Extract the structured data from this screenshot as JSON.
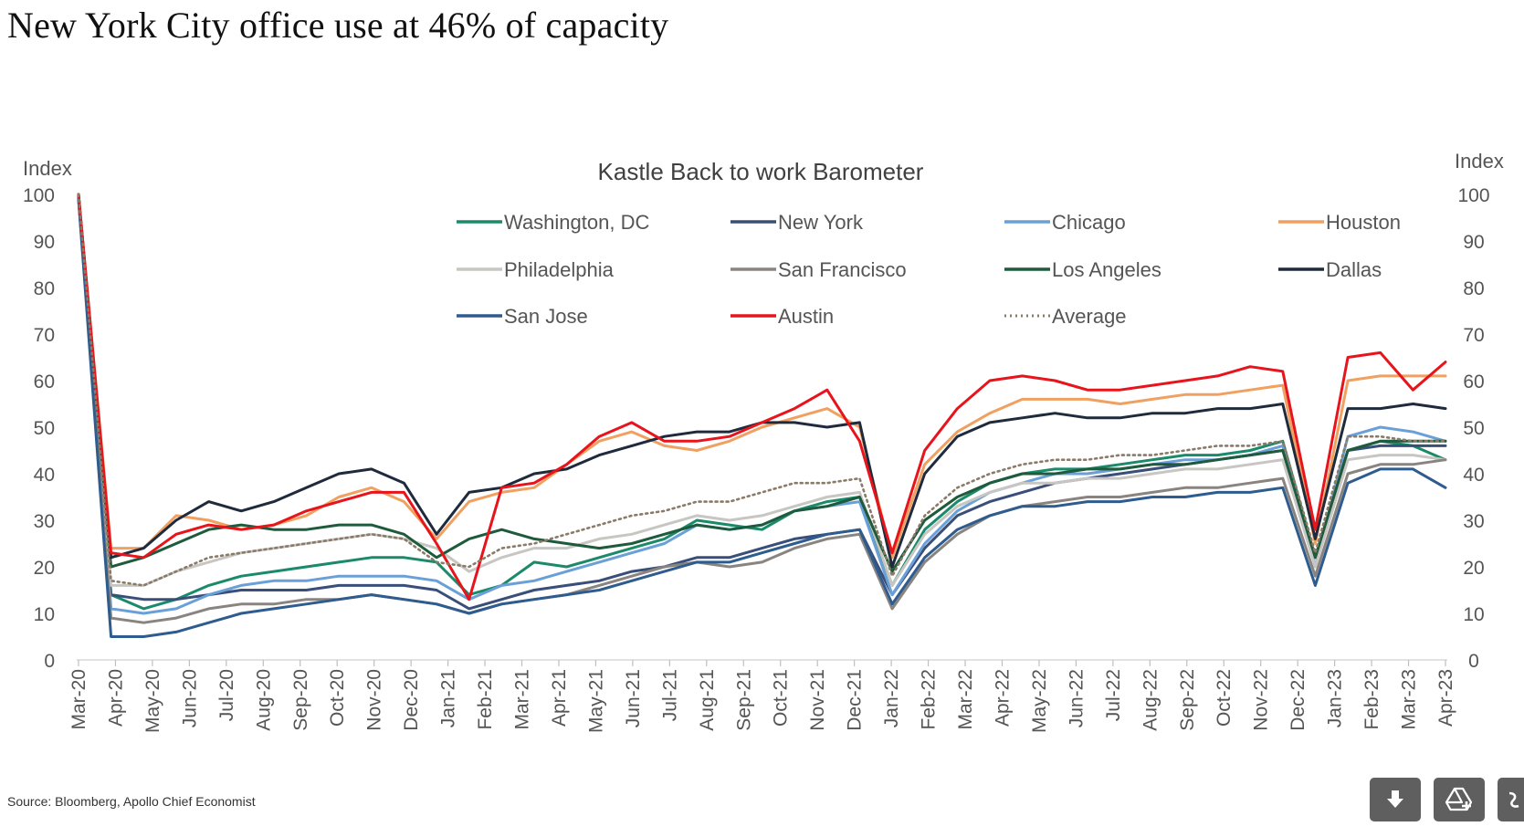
{
  "title": "New York City office use at 46% of capacity",
  "source": "Source: Bloomberg, Apollo Chief Economist",
  "toolbar": {
    "download_icon": "download-icon",
    "drive_icon": "google-drive-icon",
    "third_icon": "partial-icon"
  },
  "chart_data": {
    "type": "line",
    "title": "Kastle Back to work Barometer",
    "ylabel_left": "Index",
    "ylabel_right": "Index",
    "ylim": [
      0,
      100
    ],
    "yticks": [
      "0",
      "10",
      "20",
      "30",
      "40",
      "50",
      "60",
      "70",
      "80",
      "90",
      "100"
    ],
    "xticks": [
      "Mar-20",
      "Apr-20",
      "May-20",
      "Jun-20",
      "Jul-20",
      "Aug-20",
      "Sep-20",
      "Oct-20",
      "Nov-20",
      "Dec-20",
      "Jan-21",
      "Feb-21",
      "Mar-21",
      "Apr-21",
      "May-21",
      "Jun-21",
      "Jul-21",
      "Aug-21",
      "Sep-21",
      "Oct-21",
      "Nov-21",
      "Dec-21",
      "Jan-22",
      "Feb-22",
      "Mar-22",
      "Apr-22",
      "May-22",
      "Jun-22",
      "Jul-22",
      "Aug-22",
      "Sep-22",
      "Oct-22",
      "Nov-22",
      "Dec-22",
      "Jan-23",
      "Feb-23",
      "Mar-23",
      "Apr-23"
    ],
    "legend_position": "top-center",
    "series": [
      {
        "name": "Washington, DC",
        "color": "#1a8a6a",
        "style": "solid",
        "values": [
          100,
          14,
          11,
          13,
          16,
          18,
          19,
          20,
          21,
          22,
          22,
          21,
          14,
          16,
          21,
          20,
          22,
          24,
          26,
          30,
          29,
          28,
          32,
          34,
          35,
          16,
          28,
          34,
          38,
          40,
          41,
          41,
          42,
          43,
          44,
          44,
          45,
          47,
          22,
          45,
          47,
          46,
          43
        ]
      },
      {
        "name": "New York",
        "color": "#3a4e7a",
        "style": "solid",
        "values": [
          100,
          14,
          13,
          13,
          14,
          15,
          15,
          15,
          16,
          16,
          16,
          15,
          11,
          13,
          15,
          16,
          17,
          19,
          20,
          22,
          22,
          24,
          26,
          27,
          28,
          14,
          24,
          31,
          34,
          36,
          38,
          39,
          40,
          41,
          42,
          43,
          44,
          45,
          22,
          45,
          46,
          46,
          46
        ]
      },
      {
        "name": "Chicago",
        "color": "#6a9fd8",
        "style": "solid",
        "values": [
          99,
          11,
          10,
          11,
          14,
          16,
          17,
          17,
          18,
          18,
          18,
          17,
          13,
          16,
          17,
          19,
          21,
          23,
          25,
          29,
          28,
          29,
          32,
          33,
          34,
          14,
          25,
          32,
          36,
          38,
          40,
          40,
          41,
          42,
          43,
          43,
          44,
          46,
          20,
          48,
          50,
          49,
          47
        ]
      },
      {
        "name": "Houston",
        "color": "#f0a060",
        "style": "solid",
        "values": [
          100,
          24,
          24,
          31,
          30,
          28,
          29,
          31,
          35,
          37,
          34,
          26,
          34,
          36,
          37,
          42,
          47,
          49,
          46,
          45,
          47,
          50,
          52,
          54,
          50,
          22,
          42,
          49,
          53,
          56,
          56,
          56,
          55,
          56,
          57,
          57,
          58,
          59,
          25,
          60,
          61,
          61,
          61
        ]
      },
      {
        "name": "Philadelphia",
        "color": "#c8c6c2",
        "style": "solid",
        "values": [
          99,
          16,
          16,
          19,
          21,
          23,
          24,
          25,
          26,
          27,
          26,
          24,
          19,
          22,
          24,
          24,
          26,
          27,
          29,
          31,
          30,
          31,
          33,
          35,
          36,
          16,
          27,
          33,
          36,
          38,
          38,
          39,
          39,
          40,
          41,
          41,
          42,
          43,
          20,
          43,
          44,
          44,
          43
        ]
      },
      {
        "name": "San Francisco",
        "color": "#8a8480",
        "style": "solid",
        "values": [
          99,
          9,
          8,
          9,
          11,
          12,
          12,
          13,
          13,
          14,
          13,
          12,
          10,
          12,
          13,
          14,
          16,
          18,
          20,
          21,
          20,
          21,
          24,
          26,
          27,
          11,
          21,
          27,
          31,
          33,
          34,
          35,
          35,
          36,
          37,
          37,
          38,
          39,
          18,
          40,
          42,
          42,
          43
        ]
      },
      {
        "name": "Los Angeles",
        "color": "#1e5a3c",
        "style": "solid",
        "values": [
          100,
          20,
          22,
          25,
          28,
          29,
          28,
          28,
          29,
          29,
          27,
          22,
          26,
          28,
          26,
          25,
          24,
          25,
          27,
          29,
          28,
          29,
          32,
          33,
          35,
          19,
          30,
          35,
          38,
          40,
          40,
          41,
          41,
          42,
          42,
          43,
          44,
          45,
          22,
          45,
          47,
          47,
          47
        ]
      },
      {
        "name": "Dallas",
        "color": "#1f2b3d",
        "style": "solid",
        "values": [
          100,
          22,
          24,
          30,
          34,
          32,
          34,
          37,
          40,
          41,
          38,
          27,
          36,
          37,
          40,
          41,
          44,
          46,
          48,
          49,
          49,
          51,
          51,
          50,
          51,
          20,
          40,
          48,
          51,
          52,
          53,
          52,
          52,
          53,
          53,
          54,
          54,
          55,
          26,
          54,
          54,
          55,
          54
        ]
      },
      {
        "name": "San Jose",
        "color": "#2e5c8e",
        "style": "solid",
        "values": [
          99,
          5,
          5,
          6,
          8,
          10,
          11,
          12,
          13,
          14,
          13,
          12,
          10,
          12,
          13,
          14,
          15,
          17,
          19,
          21,
          21,
          23,
          25,
          27,
          28,
          12,
          22,
          28,
          31,
          33,
          33,
          34,
          34,
          35,
          35,
          36,
          36,
          37,
          16,
          38,
          41,
          41,
          37
        ]
      },
      {
        "name": "Austin",
        "color": "#e8141c",
        "style": "solid",
        "values": [
          100,
          23,
          22,
          27,
          29,
          28,
          29,
          32,
          34,
          36,
          36,
          25,
          13,
          37,
          38,
          42,
          48,
          51,
          47,
          47,
          48,
          51,
          54,
          58,
          47,
          23,
          45,
          54,
          60,
          61,
          60,
          58,
          58,
          59,
          60,
          61,
          63,
          62,
          28,
          65,
          66,
          58,
          64
        ]
      },
      {
        "name": "Average",
        "color": "#8a7a68",
        "style": "dotted",
        "values": [
          100,
          17,
          16,
          19,
          22,
          23,
          24,
          25,
          26,
          27,
          26,
          21,
          20,
          24,
          25,
          27,
          29,
          31,
          32,
          34,
          34,
          36,
          38,
          38,
          39,
          18,
          31,
          37,
          40,
          42,
          43,
          43,
          44,
          44,
          45,
          46,
          46,
          47,
          23,
          48,
          48,
          47,
          47
        ]
      }
    ]
  }
}
